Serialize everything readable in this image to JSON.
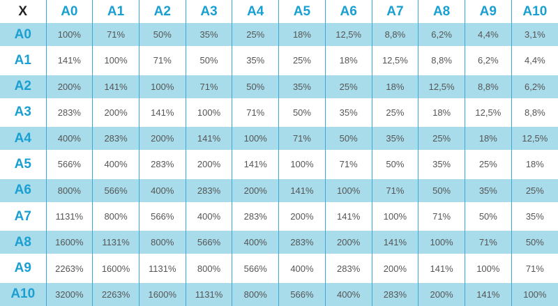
{
  "table": {
    "corner": "X",
    "columns": [
      "A0",
      "A1",
      "A2",
      "A3",
      "A4",
      "A5",
      "A6",
      "A7",
      "A8",
      "A9",
      "A10"
    ],
    "rows": [
      {
        "label": "A0",
        "cells": [
          "100%",
          "71%",
          "50%",
          "35%",
          "25%",
          "18%",
          "12,5%",
          "8,8%",
          "6,2%",
          "4,4%",
          "3,1%"
        ]
      },
      {
        "label": "A1",
        "cells": [
          "141%",
          "100%",
          "71%",
          "50%",
          "35%",
          "25%",
          "18%",
          "12,5%",
          "8,8%",
          "6,2%",
          "4,4%"
        ]
      },
      {
        "label": "A2",
        "cells": [
          "200%",
          "141%",
          "100%",
          "71%",
          "50%",
          "35%",
          "25%",
          "18%",
          "12,5%",
          "8,8%",
          "6,2%"
        ]
      },
      {
        "label": "A3",
        "cells": [
          "283%",
          "200%",
          "141%",
          "100%",
          "71%",
          "50%",
          "35%",
          "25%",
          "18%",
          "12,5%",
          "8,8%"
        ]
      },
      {
        "label": "A4",
        "cells": [
          "400%",
          "283%",
          "200%",
          "141%",
          "100%",
          "71%",
          "50%",
          "35%",
          "25%",
          "18%",
          "12,5%"
        ]
      },
      {
        "label": "A5",
        "cells": [
          "566%",
          "400%",
          "283%",
          "200%",
          "141%",
          "100%",
          "71%",
          "50%",
          "35%",
          "25%",
          "18%"
        ]
      },
      {
        "label": "A6",
        "cells": [
          "800%",
          "566%",
          "400%",
          "283%",
          "200%",
          "141%",
          "100%",
          "71%",
          "50%",
          "35%",
          "25%"
        ]
      },
      {
        "label": "A7",
        "cells": [
          "1131%",
          "800%",
          "566%",
          "400%",
          "283%",
          "200%",
          "141%",
          "100%",
          "71%",
          "50%",
          "35%"
        ]
      },
      {
        "label": "A8",
        "cells": [
          "1600%",
          "1131%",
          "800%",
          "566%",
          "400%",
          "283%",
          "200%",
          "141%",
          "100%",
          "71%",
          "50%"
        ]
      },
      {
        "label": "A9",
        "cells": [
          "2263%",
          "1600%",
          "1131%",
          "800%",
          "566%",
          "400%",
          "283%",
          "200%",
          "141%",
          "100%",
          "71%"
        ]
      },
      {
        "label": "A10",
        "cells": [
          "3200%",
          "2263%",
          "1600%",
          "1131%",
          "800%",
          "566%",
          "400%",
          "283%",
          "200%",
          "141%",
          "100%"
        ]
      }
    ]
  }
}
